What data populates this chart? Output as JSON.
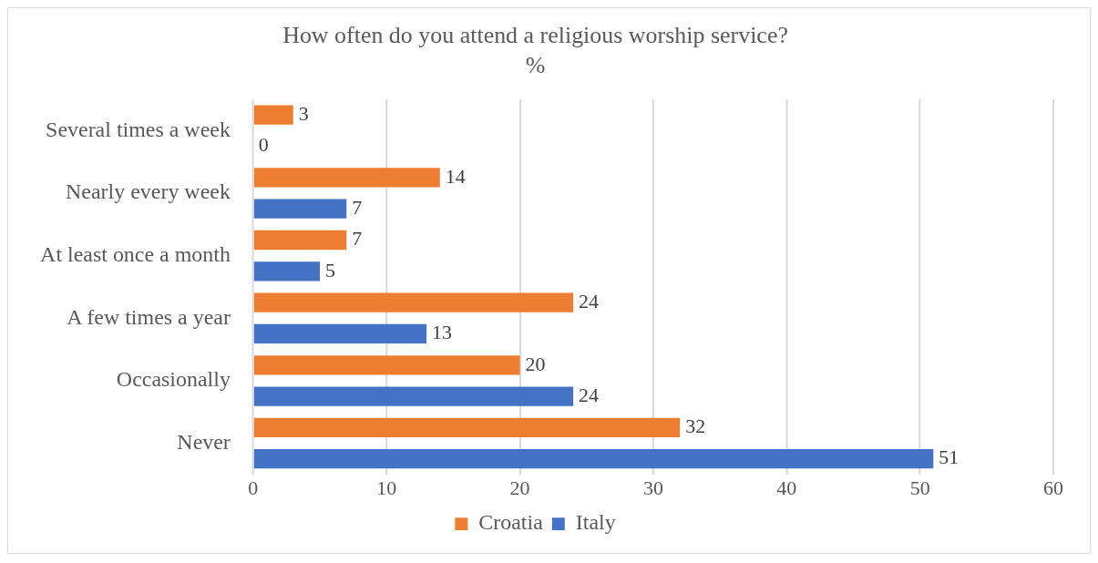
{
  "chart_data": {
    "type": "bar",
    "orientation": "horizontal",
    "title": "How often do you attend a religious worship service?",
    "subtitle": "%",
    "categories": [
      "Several times a week",
      "Nearly every week",
      "At least once a month",
      "A few times a year",
      "Occasionally",
      "Never"
    ],
    "series": [
      {
        "name": "Croatia",
        "color": "#ed7d31",
        "values": [
          3,
          14,
          7,
          24,
          20,
          32
        ]
      },
      {
        "name": "Italy",
        "color": "#4472c4",
        "values": [
          0,
          7,
          5,
          13,
          24,
          51
        ]
      }
    ],
    "xlim": [
      0,
      60
    ],
    "xticks": [
      0,
      10,
      20,
      30,
      40,
      50,
      60
    ],
    "grid": "x",
    "legend": "bottom",
    "data_labels": true
  }
}
